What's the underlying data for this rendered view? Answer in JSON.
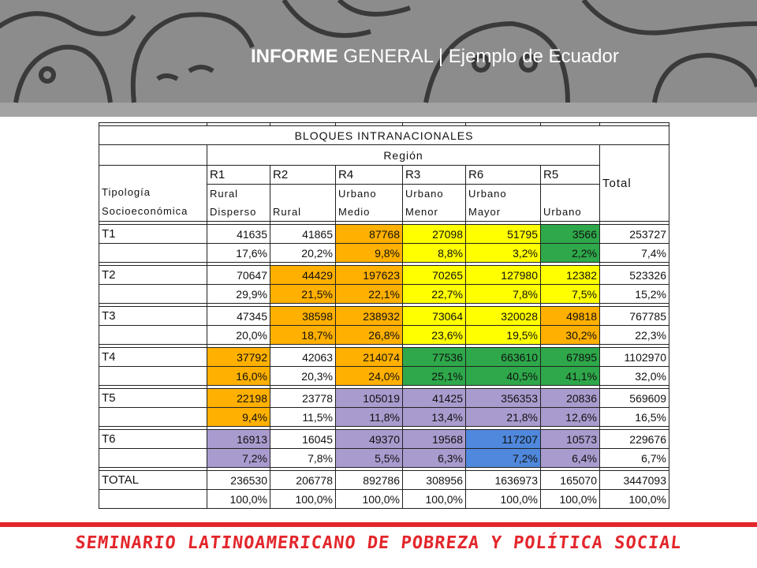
{
  "header": {
    "title_bold": "INFORME",
    "title_rest": " GENERAL | Ejemplo de Ecuador"
  },
  "table": {
    "title": "BLOQUES INTRANACIONALES",
    "region": "Región",
    "total": "Total",
    "typology": [
      "Tipología",
      "Socioeconómica"
    ],
    "columns": [
      {
        "code": "R1",
        "name": [
          "Rural",
          "Disperso"
        ]
      },
      {
        "code": "R2",
        "name": [
          "",
          "Rural"
        ]
      },
      {
        "code": "R4",
        "name": [
          "Urbano",
          "Medio"
        ]
      },
      {
        "code": "R3",
        "name": [
          "Urbano",
          "Menor"
        ]
      },
      {
        "code": "R6",
        "name": [
          "Urbano",
          "Mayor"
        ]
      },
      {
        "code": "R5",
        "name": [
          "",
          "Urbano"
        ]
      }
    ],
    "rows": [
      {
        "label": "T1",
        "counts": [
          41635,
          41865,
          87768,
          27098,
          51795,
          3566,
          253727
        ],
        "shares": [
          "17,6%",
          "20,2%",
          "9,8%",
          "8,8%",
          "3,2%",
          "2,2%",
          "7,4%"
        ]
      },
      {
        "label": "T2",
        "counts": [
          70647,
          44429,
          197623,
          70265,
          127980,
          12382,
          523326
        ],
        "shares": [
          "29,9%",
          "21,5%",
          "22,1%",
          "22,7%",
          "7,8%",
          "7,5%",
          "15,2%"
        ]
      },
      {
        "label": "T3",
        "counts": [
          47345,
          38598,
          238932,
          73064,
          320028,
          49818,
          767785
        ],
        "shares": [
          "20,0%",
          "18,7%",
          "26,8%",
          "23,6%",
          "19,5%",
          "30,2%",
          "22,3%"
        ]
      },
      {
        "label": "T4",
        "counts": [
          37792,
          42063,
          214074,
          77536,
          663610,
          67895,
          1102970
        ],
        "shares": [
          "16,0%",
          "20,3%",
          "24,0%",
          "25,1%",
          "40,5%",
          "41,1%",
          "32,0%"
        ]
      },
      {
        "label": "T5",
        "counts": [
          22198,
          23778,
          105019,
          41425,
          356353,
          20836,
          569609
        ],
        "shares": [
          "9,4%",
          "11,5%",
          "11,8%",
          "13,4%",
          "21,8%",
          "12,6%",
          "16,5%"
        ]
      },
      {
        "label": "T6",
        "counts": [
          16913,
          16045,
          49370,
          19568,
          117207,
          10573,
          229676
        ],
        "shares": [
          "7,2%",
          "7,8%",
          "5,5%",
          "6,3%",
          "7,2%",
          "6,4%",
          "6,7%"
        ]
      },
      {
        "label": "TOTAL",
        "counts": [
          236530,
          206778,
          892786,
          308956,
          1636973,
          165070,
          3447093
        ],
        "shares": [
          "100,0%",
          "100,0%",
          "100,0%",
          "100,0%",
          "100,0%",
          "100,0%",
          "100,0%"
        ]
      }
    ]
  },
  "footer": "SEMINARIO LATINOAMERICANO DE POBREZA Y POLÍTICA SOCIAL"
}
